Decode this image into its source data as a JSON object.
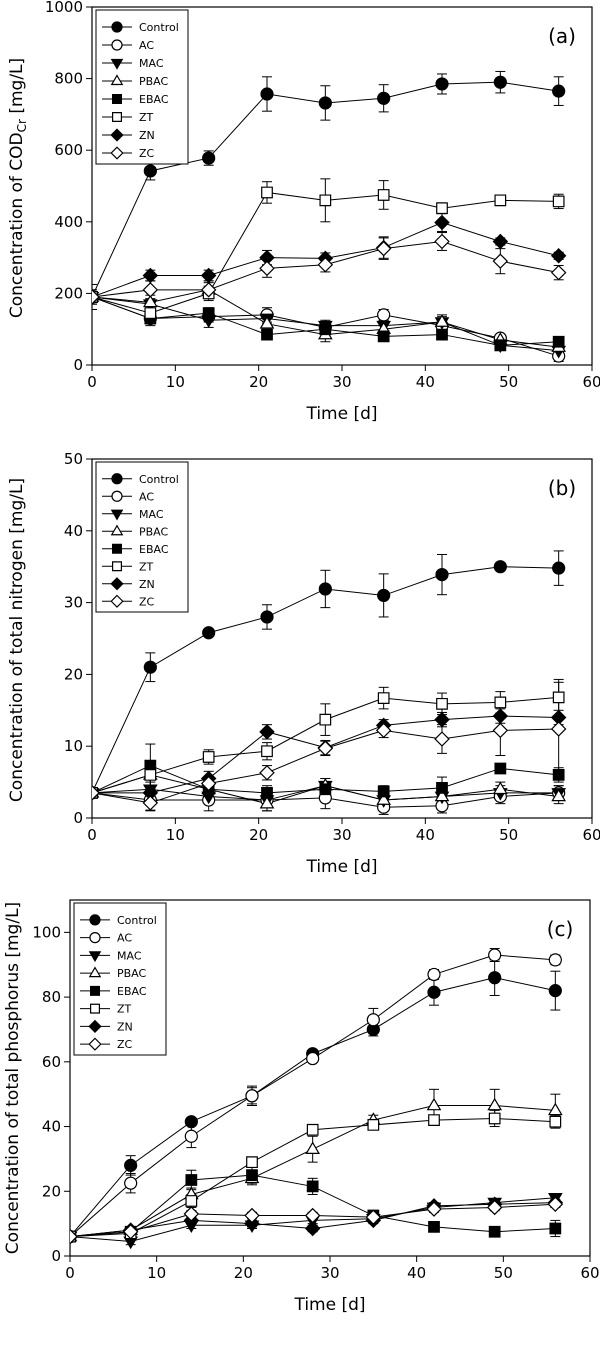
{
  "figure": {
    "charts": [
      {
        "panel_label": "(a)",
        "ylabel_main": "Concentration of COD",
        "ylabel_sub": "Cr",
        "ylabel_unit": " [mg/L]"
      },
      {
        "panel_label": "(b)",
        "ylabel_main": "Concentration of total nitrogen [mg/L]",
        "ylabel_sub": "",
        "ylabel_unit": ""
      },
      {
        "panel_label": "(c)",
        "ylabel_main": "Concentration of total phosphorus [mg/L]",
        "ylabel_sub": "",
        "ylabel_unit": ""
      }
    ]
  },
  "chart_data": [
    {
      "type": "line",
      "title": "(a)",
      "xlabel": "Time [d]",
      "ylabel": "Concentration of CODCr [mg/L]",
      "xlim": [
        0,
        60
      ],
      "ylim": [
        0,
        1000
      ],
      "xticks": [
        0,
        10,
        20,
        30,
        40,
        50,
        60
      ],
      "yticks": [
        0,
        200,
        400,
        600,
        800,
        1000
      ],
      "legend": "top-left",
      "x": [
        0,
        7,
        14,
        21,
        28,
        35,
        42,
        49,
        56
      ],
      "series": [
        {
          "name": "Control",
          "marker": "circle-filled",
          "values": [
            190,
            542,
            578,
            757,
            732,
            745,
            785,
            790,
            765
          ],
          "errors": [
            35,
            25,
            20,
            48,
            48,
            38,
            28,
            30,
            40
          ]
        },
        {
          "name": "AC",
          "marker": "circle-open",
          "values": [
            190,
            130,
            135,
            140,
            105,
            140,
            110,
            75,
            25
          ],
          "errors": [
            20,
            20,
            15,
            20,
            15,
            15,
            15,
            10,
            15
          ]
        },
        {
          "name": "MAC",
          "marker": "triangle-down-filled",
          "values": [
            190,
            170,
            125,
            130,
            110,
            110,
            120,
            55,
            40
          ],
          "errors": [
            15,
            15,
            20,
            15,
            15,
            15,
            15,
            10,
            10
          ]
        },
        {
          "name": "PBAC",
          "marker": "triangle-up-open",
          "values": [
            190,
            175,
            210,
            115,
            85,
            100,
            120,
            70,
            50
          ],
          "errors": [
            15,
            20,
            20,
            20,
            20,
            15,
            20,
            15,
            10
          ]
        },
        {
          "name": "EBAC",
          "marker": "square-filled",
          "values": [
            190,
            130,
            145,
            85,
            100,
            80,
            85,
            55,
            65
          ],
          "errors": [
            20,
            15,
            15,
            15,
            15,
            10,
            10,
            10,
            10
          ]
        },
        {
          "name": "ZT",
          "marker": "square-open",
          "values": [
            190,
            145,
            200,
            482,
            460,
            475,
            438,
            460,
            457
          ],
          "errors": [
            15,
            20,
            20,
            30,
            60,
            40,
            15,
            10,
            20
          ]
        },
        {
          "name": "ZN",
          "marker": "diamond-filled",
          "values": [
            190,
            250,
            250,
            300,
            298,
            328,
            398,
            345,
            305
          ],
          "errors": [
            15,
            15,
            15,
            20,
            15,
            30,
            25,
            10,
            10
          ]
        },
        {
          "name": "ZC",
          "marker": "diamond-open",
          "values": [
            190,
            210,
            210,
            270,
            280,
            325,
            345,
            290,
            258
          ],
          "errors": [
            15,
            25,
            25,
            25,
            20,
            30,
            25,
            35,
            20
          ]
        }
      ]
    },
    {
      "type": "line",
      "title": "(b)",
      "xlabel": "Time [d]",
      "ylabel": "Concentration of total nitrogen [mg/L]",
      "xlim": [
        0,
        60
      ],
      "ylim": [
        0,
        50
      ],
      "xticks": [
        0,
        10,
        20,
        30,
        40,
        50,
        60
      ],
      "yticks": [
        0,
        10,
        20,
        30,
        40,
        50
      ],
      "legend": "top-left",
      "x": [
        0,
        7,
        14,
        21,
        28,
        35,
        42,
        49,
        56
      ],
      "series": [
        {
          "name": "Control",
          "marker": "circle-filled",
          "values": [
            3.5,
            21.0,
            25.8,
            28.0,
            31.9,
            31.0,
            33.9,
            35.0,
            34.8
          ],
          "errors": [
            0.5,
            2.0,
            0.4,
            1.7,
            2.6,
            3.0,
            2.8,
            0.3,
            2.4
          ]
        },
        {
          "name": "AC",
          "marker": "circle-open",
          "values": [
            3.5,
            2.5,
            2.5,
            2.5,
            2.8,
            1.5,
            1.7,
            3.0,
            3.5
          ],
          "errors": [
            0.5,
            1.5,
            1.5,
            1.5,
            1.5,
            1.0,
            1.0,
            1.0,
            1.0
          ]
        },
        {
          "name": "MAC",
          "marker": "triangle-down-filled",
          "values": [
            3.5,
            4.0,
            3.0,
            2.5,
            4.5,
            2.5,
            3.0,
            3.5,
            3.5
          ],
          "errors": [
            0.5,
            1.0,
            1.0,
            1.0,
            1.0,
            1.0,
            1.0,
            1.0,
            1.0
          ]
        },
        {
          "name": "PBAC",
          "marker": "triangle-up-open",
          "values": [
            3.5,
            6.0,
            4.0,
            2.0,
            4.5,
            2.5,
            3.0,
            4.0,
            3.0
          ],
          "errors": [
            0.5,
            2.0,
            1.5,
            1.0,
            1.0,
            1.0,
            1.0,
            1.0,
            1.0
          ]
        },
        {
          "name": "EBAC",
          "marker": "square-filled",
          "values": [
            3.5,
            7.3,
            4.0,
            3.5,
            4.0,
            3.7,
            4.2,
            6.9,
            6.0
          ],
          "errors": [
            0.5,
            3.0,
            1.0,
            1.0,
            1.0,
            0.8,
            1.5,
            0.5,
            1.0
          ]
        },
        {
          "name": "ZT",
          "marker": "square-open",
          "values": [
            3.5,
            6.0,
            8.5,
            9.3,
            13.7,
            16.7,
            15.9,
            16.1,
            16.8
          ],
          "errors": [
            0.5,
            1.5,
            1.0,
            1.2,
            2.2,
            1.5,
            1.5,
            1.5,
            2.5
          ]
        },
        {
          "name": "ZN",
          "marker": "diamond-filled",
          "values": [
            3.5,
            3.5,
            5.5,
            12.0,
            9.8,
            12.9,
            13.7,
            14.2,
            14.0
          ],
          "errors": [
            0.5,
            1.0,
            1.0,
            1.0,
            1.0,
            0.8,
            1.0,
            1.0,
            1.0
          ]
        },
        {
          "name": "ZC",
          "marker": "diamond-open",
          "values": [
            3.5,
            2.1,
            4.8,
            6.3,
            9.7,
            12.2,
            11.0,
            12.2,
            12.4
          ],
          "errors": [
            0.5,
            1.0,
            1.0,
            1.0,
            1.0,
            1.0,
            2.0,
            3.5,
            6.5
          ]
        }
      ]
    },
    {
      "type": "line",
      "title": "(c)",
      "xlabel": "Time [d]",
      "ylabel": "Concentration of total phosphorus [mg/L]",
      "xlim": [
        0,
        60
      ],
      "ylim": [
        0,
        110
      ],
      "xticks": [
        0,
        10,
        20,
        30,
        40,
        50,
        60
      ],
      "yticks": [
        0,
        20,
        40,
        60,
        80,
        100
      ],
      "legend": "top-left",
      "x": [
        0,
        7,
        14,
        21,
        28,
        35,
        42,
        49,
        56
      ],
      "series": [
        {
          "name": "Control",
          "marker": "circle-filled",
          "values": [
            6.0,
            28.0,
            41.5,
            49.5,
            62.5,
            70.0,
            81.5,
            86.0,
            82.0
          ],
          "errors": [
            0.5,
            3.0,
            1.0,
            2.5,
            1.0,
            2.0,
            4.0,
            5.5,
            6.0
          ]
        },
        {
          "name": "AC",
          "marker": "circle-open",
          "values": [
            6.0,
            22.5,
            37.0,
            49.5,
            61.0,
            73.0,
            87.0,
            93.0,
            91.5
          ],
          "errors": [
            0.5,
            3.0,
            3.5,
            3.0,
            1.0,
            3.5,
            1.5,
            2.0,
            1.5
          ]
        },
        {
          "name": "MAC",
          "marker": "triangle-down-filled",
          "values": [
            6.0,
            4.5,
            9.5,
            9.5,
            11.0,
            11.5,
            15.0,
            16.5,
            18.0
          ],
          "errors": [
            0.5,
            1.0,
            1.0,
            1.0,
            1.0,
            1.0,
            1.0,
            1.0,
            1.0
          ]
        },
        {
          "name": "PBAC",
          "marker": "triangle-up-open",
          "values": [
            6.0,
            8.0,
            19.0,
            24.0,
            33.0,
            42.0,
            46.5,
            46.5,
            45.0
          ],
          "errors": [
            0.5,
            1.0,
            2.0,
            2.0,
            4.0,
            1.5,
            5.0,
            5.0,
            5.0
          ]
        },
        {
          "name": "EBAC",
          "marker": "square-filled",
          "values": [
            6.0,
            7.5,
            23.5,
            25.0,
            21.5,
            12.5,
            9.0,
            7.5,
            8.5
          ],
          "errors": [
            0.5,
            1.0,
            3.0,
            2.5,
            2.5,
            1.5,
            1.0,
            1.0,
            2.5
          ]
        },
        {
          "name": "ZT",
          "marker": "square-open",
          "values": [
            6.0,
            7.0,
            17.0,
            29.0,
            39.0,
            40.5,
            42.0,
            42.5,
            41.5
          ],
          "errors": [
            0.5,
            1.0,
            2.0,
            1.5,
            1.5,
            1.5,
            1.5,
            2.5,
            2.0
          ]
        },
        {
          "name": "ZN",
          "marker": "diamond-filled",
          "values": [
            6.0,
            8.0,
            11.0,
            10.0,
            8.5,
            11.0,
            15.5,
            16.0,
            16.5
          ],
          "errors": [
            0.5,
            1.0,
            1.0,
            1.0,
            1.0,
            1.0,
            1.0,
            1.0,
            1.0
          ]
        },
        {
          "name": "ZC",
          "marker": "diamond-open",
          "values": [
            6.0,
            7.5,
            13.0,
            12.5,
            12.5,
            12.0,
            14.5,
            15.0,
            16.0
          ],
          "errors": [
            0.5,
            1.0,
            1.0,
            1.0,
            1.0,
            1.0,
            1.0,
            1.0,
            1.0
          ]
        }
      ]
    }
  ]
}
